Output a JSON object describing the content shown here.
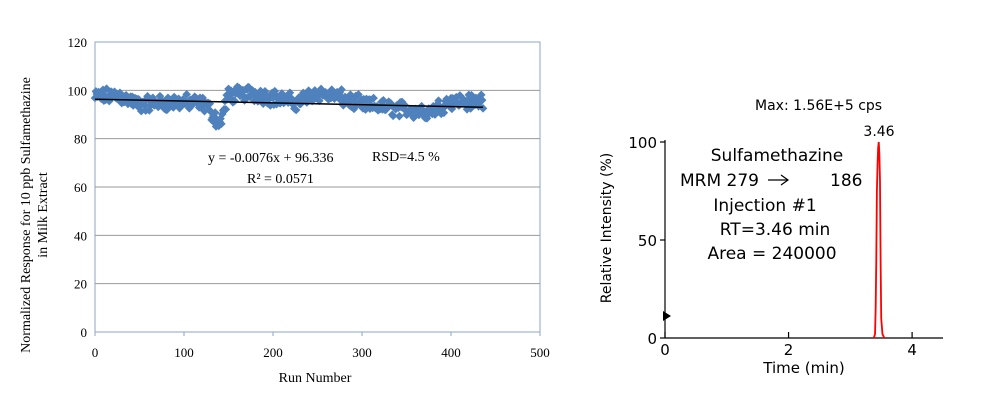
{
  "chart_data": [
    {
      "type": "scatter",
      "xlabel": "Run Number",
      "ylabel_line1": "Normalized Response for 10 ppb Sulfamethazine",
      "ylabel_line2": "in Milk Extract",
      "xlim": [
        0,
        500
      ],
      "ylim": [
        0,
        120
      ],
      "xticks": [
        "0",
        "100",
        "200",
        "300",
        "400",
        "500"
      ],
      "yticks": [
        "0",
        "20",
        "40",
        "60",
        "80",
        "100",
        "120"
      ],
      "grid": "horizontal",
      "marker_color": "#4f81bd",
      "trendline": {
        "slope": -0.0076,
        "intercept": 96.336,
        "x_range": [
          0,
          436
        ],
        "color": "#000000"
      },
      "annotations": {
        "equation": "y = -0.0076x + 96.336",
        "r_squared": "R² = 0.0571",
        "rsd": "RSD=4.5 %"
      },
      "series": [
        {
          "n_points": 437,
          "x_start": 0,
          "x_step": 1,
          "y_anchor_x": [
            0,
            25,
            50,
            75,
            100,
            125,
            140,
            150,
            175,
            200,
            225,
            250,
            275,
            300,
            325,
            350,
            375,
            400,
            425,
            436
          ],
          "y_anchor_mean": [
            97,
            98,
            94,
            95,
            95,
            94,
            86,
            98,
            99,
            97,
            95,
            99,
            97,
            94,
            93,
            92,
            91,
            96,
            95,
            96
          ],
          "y_spread": 4
        }
      ]
    },
    {
      "type": "line",
      "title": "Max: 1.56E+5 cps",
      "xlabel": "Time (min)",
      "ylabel": "Relative Intensity (%)",
      "xlim": [
        0,
        4.5
      ],
      "ylim": [
        0,
        100
      ],
      "xticks": [
        "0",
        "2",
        "4"
      ],
      "yticks": [
        "0",
        "50",
        "100"
      ],
      "peak_label": "3.46",
      "line_color": "#ff0000",
      "annotations": [
        "Sulfamethazine",
        "MRM 279",
        "186",
        "Injection #1",
        "RT=3.46 min",
        "Area = 240000"
      ],
      "series": [
        {
          "x": [
            3.38,
            3.4,
            3.41,
            3.42,
            3.43,
            3.44,
            3.45,
            3.46,
            3.47,
            3.48,
            3.49,
            3.5,
            3.52,
            3.55
          ],
          "y": [
            0,
            2,
            15,
            40,
            75,
            88,
            97,
            100,
            94,
            80,
            40,
            10,
            2,
            0
          ]
        }
      ]
    }
  ]
}
